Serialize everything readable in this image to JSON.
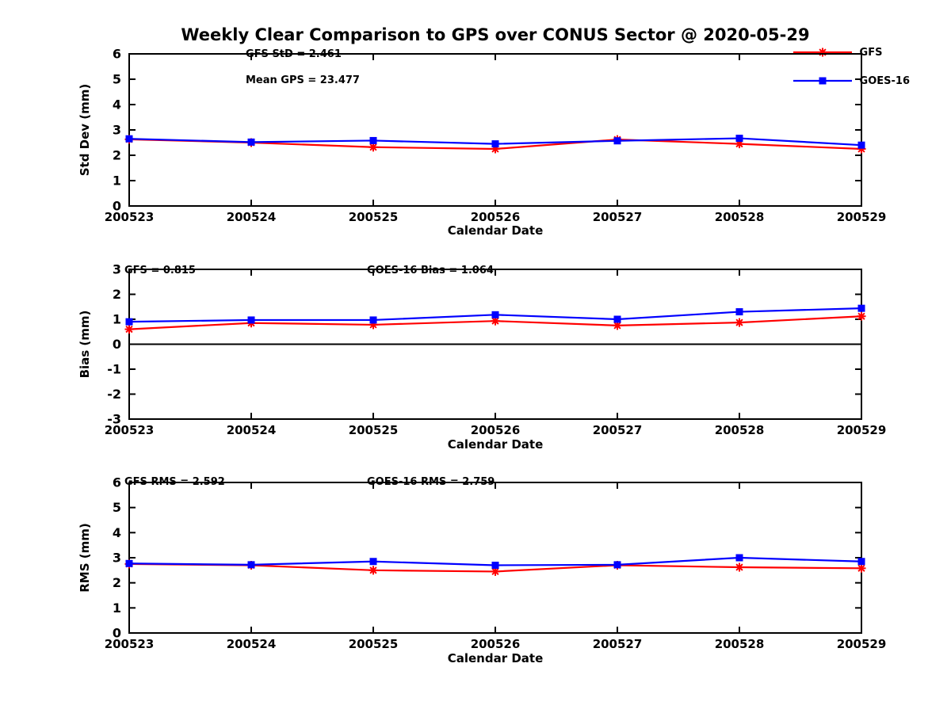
{
  "title": "Weekly Clear Comparison to GPS over CONUS Sector @ 2020-05-29",
  "legend": [
    {
      "label": "GFS",
      "color": "#ff0000",
      "marker": "asterisk"
    },
    {
      "label": "GOES-16",
      "color": "#0000ff",
      "marker": "square"
    }
  ],
  "chart_data": [
    {
      "type": "line",
      "name": "std-dev",
      "xlabel": "Calendar Date",
      "ylabel": "Std Dev (mm)",
      "ylim": [
        0,
        6
      ],
      "yticks": [
        0,
        1,
        2,
        3,
        4,
        5,
        6
      ],
      "grid": false,
      "zero_line": false,
      "categories": [
        "200523",
        "200524",
        "200525",
        "200526",
        "200527",
        "200528",
        "200529"
      ],
      "series": [
        {
          "name": "GFS",
          "color": "#ff0000",
          "marker": "asterisk",
          "values": [
            2.63,
            2.5,
            2.32,
            2.25,
            2.62,
            2.45,
            2.25
          ]
        },
        {
          "name": "GOES-16",
          "color": "#0000ff",
          "marker": "square",
          "values": [
            2.65,
            2.52,
            2.58,
            2.45,
            2.57,
            2.67,
            2.4
          ]
        }
      ],
      "annotations": [
        {
          "text": "GFS StD = 2.461",
          "x": 310,
          "y": 72
        },
        {
          "text": "Mean GPS = 23.477",
          "x": 310,
          "y": 105
        }
      ]
    },
    {
      "type": "line",
      "name": "bias",
      "xlabel": "Calendar Date",
      "ylabel": "Bias (mm)",
      "ylim": [
        -3,
        3
      ],
      "yticks": [
        -3,
        -2,
        -1,
        0,
        1,
        2,
        3
      ],
      "grid": false,
      "zero_line": true,
      "categories": [
        "200523",
        "200524",
        "200525",
        "200526",
        "200527",
        "200528",
        "200529"
      ],
      "series": [
        {
          "name": "GFS",
          "color": "#ff0000",
          "marker": "asterisk",
          "values": [
            0.6,
            0.85,
            0.78,
            0.93,
            0.75,
            0.87,
            1.12
          ]
        },
        {
          "name": "GOES-16",
          "color": "#0000ff",
          "marker": "square",
          "values": [
            0.9,
            0.97,
            0.97,
            1.18,
            1.0,
            1.3,
            1.44
          ]
        }
      ],
      "annotations": [
        {
          "text": "GFS = 0.815",
          "x": 157,
          "y": 35
        },
        {
          "text": "GOES-16 Bias  = 1.064",
          "x": 463,
          "y": 35
        }
      ]
    },
    {
      "type": "line",
      "name": "rms",
      "xlabel": "Calendar Date",
      "ylabel": "RMS (mm)",
      "ylim": [
        0,
        6
      ],
      "yticks": [
        0,
        1,
        2,
        3,
        4,
        5,
        6
      ],
      "grid": false,
      "zero_line": false,
      "categories": [
        "200523",
        "200524",
        "200525",
        "200526",
        "200527",
        "200528",
        "200529"
      ],
      "series": [
        {
          "name": "GFS",
          "color": "#ff0000",
          "marker": "asterisk",
          "values": [
            2.75,
            2.7,
            2.5,
            2.45,
            2.7,
            2.62,
            2.58
          ]
        },
        {
          "name": "GOES-16",
          "color": "#0000ff",
          "marker": "square",
          "values": [
            2.77,
            2.72,
            2.85,
            2.7,
            2.72,
            3.0,
            2.85
          ]
        }
      ],
      "annotations": [
        {
          "text": "GFS RMS = 2.592",
          "x": 157,
          "y": 32
        },
        {
          "text": "GOES-16 RMS = 2.759",
          "x": 463,
          "y": 32
        }
      ]
    }
  ]
}
